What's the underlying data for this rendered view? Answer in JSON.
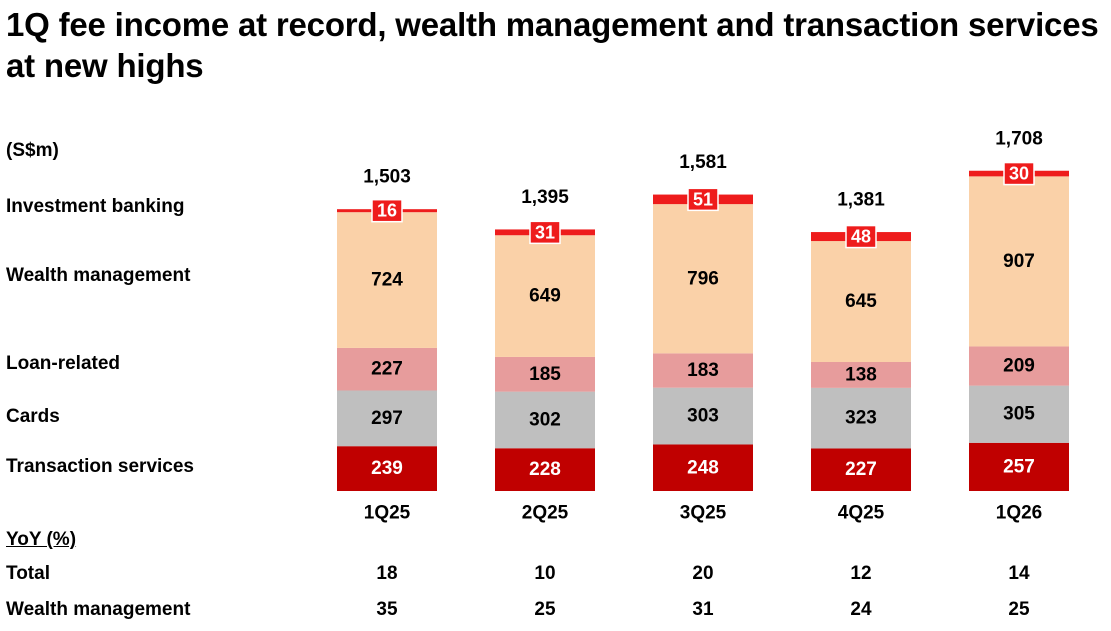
{
  "title": "1Q fee income at record, wealth management and transaction services at new highs",
  "unit_label": "(S$m)",
  "colors": {
    "investment_banking": "#ee1c1c",
    "wealth_management": "#fad1a8",
    "loan_related": "#e79c9c",
    "cards": "#bfbfbf",
    "transaction_services": "#c00000"
  },
  "chart_data": {
    "type": "bar",
    "stacked": true,
    "categories": [
      "1Q25",
      "2Q25",
      "3Q25",
      "4Q25",
      "1Q26"
    ],
    "series": [
      {
        "name": "Transaction services",
        "values": [
          239,
          228,
          248,
          227,
          257
        ]
      },
      {
        "name": "Cards",
        "values": [
          297,
          302,
          303,
          323,
          305
        ]
      },
      {
        "name": "Loan-related",
        "values": [
          227,
          185,
          183,
          138,
          209
        ]
      },
      {
        "name": "Wealth management",
        "values": [
          724,
          649,
          796,
          645,
          907
        ]
      },
      {
        "name": "Investment banking",
        "values": [
          16,
          31,
          51,
          48,
          30
        ]
      }
    ],
    "totals": [
      "1,503",
      "1,395",
      "1,581",
      "1,381",
      "1,708"
    ],
    "ylim": [
      0,
      1800
    ],
    "legend": "left"
  },
  "yoy": {
    "heading": "YoY (%)",
    "rows": [
      {
        "label": "Total",
        "values": [
          "18",
          "10",
          "20",
          "12",
          "14"
        ]
      },
      {
        "label": "Wealth management",
        "values": [
          "35",
          "25",
          "31",
          "24",
          "25"
        ]
      }
    ]
  }
}
